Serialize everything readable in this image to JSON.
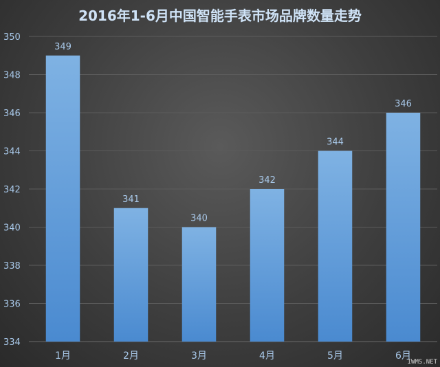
{
  "chart_data": {
    "type": "bar",
    "title": "2016年1-6月中国智能手表市场品牌数量走势",
    "categories": [
      "1月",
      "2月",
      "3月",
      "4月",
      "5月",
      "6月"
    ],
    "values": [
      349,
      341,
      340,
      342,
      344,
      346
    ],
    "ylim": [
      334,
      350
    ],
    "yticks": [
      "334",
      "336",
      "338",
      "340",
      "342",
      "344",
      "346",
      "348",
      "350"
    ],
    "xlabel": "",
    "ylabel": "",
    "grid": true,
    "bar_color": "#5b9bd5"
  },
  "watermark": "IWMS.NET"
}
